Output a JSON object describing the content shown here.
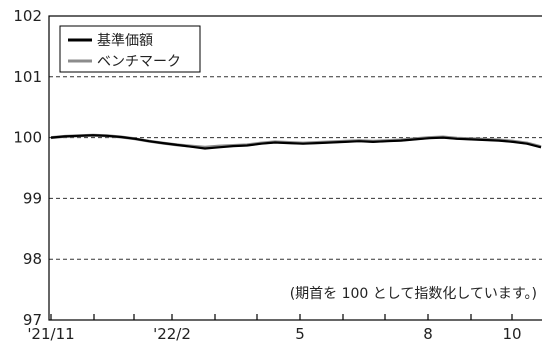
{
  "chart_data": {
    "type": "line",
    "title": "",
    "xlabel": "",
    "ylabel": "",
    "ylim": [
      97,
      102
    ],
    "yticks": [
      97,
      98,
      99,
      100,
      101,
      102
    ],
    "dashed_gridlines_at": [
      98,
      99,
      100,
      101
    ],
    "x_tick_labels": [
      "'21/11",
      "'22/2",
      "5",
      "8",
      "10"
    ],
    "note": "(期首を 100 として指数化しています。)",
    "legend_position": "top-left",
    "x": [
      "2021-11",
      "2021-11",
      "2021-11",
      "2021-12",
      "2021-12",
      "2021-12",
      "2022-01",
      "2022-01",
      "2022-01",
      "2022-02",
      "2022-02",
      "2022-02",
      "2022-03",
      "2022-03",
      "2022-03",
      "2022-04",
      "2022-04",
      "2022-04",
      "2022-05",
      "2022-05",
      "2022-05",
      "2022-06",
      "2022-06",
      "2022-06",
      "2022-07",
      "2022-07",
      "2022-07",
      "2022-08",
      "2022-08",
      "2022-08",
      "2022-09",
      "2022-09",
      "2022-09",
      "2022-10",
      "2022-10",
      "2022-10"
    ],
    "series": [
      {
        "name": "基準価額",
        "color": "#000000",
        "values": [
          100.0,
          100.02,
          100.03,
          100.04,
          100.03,
          100.01,
          99.98,
          99.94,
          99.91,
          99.88,
          99.85,
          99.82,
          99.84,
          99.86,
          99.87,
          99.9,
          99.92,
          99.91,
          99.9,
          99.91,
          99.92,
          99.93,
          99.94,
          99.93,
          99.94,
          99.95,
          99.97,
          99.99,
          100.0,
          99.98,
          99.97,
          99.96,
          99.95,
          99.93,
          99.9,
          99.84
        ]
      },
      {
        "name": "ベンチマーク",
        "color": "#8c8c8c",
        "values": [
          100.0,
          100.02,
          100.03,
          100.04,
          100.03,
          100.01,
          99.98,
          99.94,
          99.91,
          99.88,
          99.86,
          99.84,
          99.86,
          99.87,
          99.88,
          99.91,
          99.93,
          99.92,
          99.91,
          99.92,
          99.93,
          99.94,
          99.95,
          99.94,
          99.95,
          99.96,
          99.98,
          100.0,
          100.01,
          99.99,
          99.98,
          99.97,
          99.96,
          99.94,
          99.91,
          99.85
        ]
      }
    ]
  }
}
